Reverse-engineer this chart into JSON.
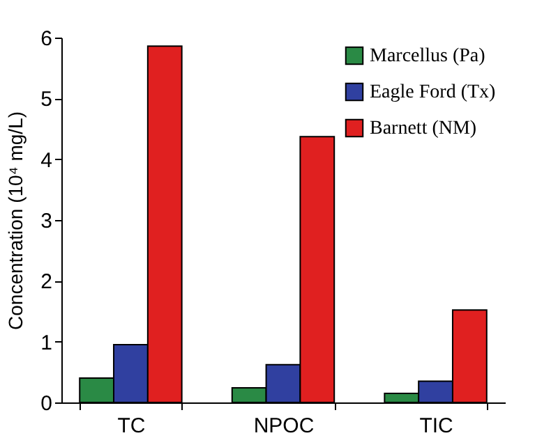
{
  "chart_data": {
    "type": "bar",
    "ylabel": "Concentration (10⁴ mg/L)",
    "categories": [
      "TC",
      "NPOC",
      "TIC"
    ],
    "series": [
      {
        "name": "Marcellus (Pa)",
        "color": "#2a8a45",
        "values": [
          0.4,
          0.24,
          0.15
        ]
      },
      {
        "name": "Eagle Ford (Tx)",
        "color": "#3040a0",
        "values": [
          0.95,
          0.62,
          0.35
        ]
      },
      {
        "name": "Barnett (NM)",
        "color": "#e02020",
        "values": [
          5.86,
          4.37,
          1.52
        ]
      }
    ],
    "ylim": [
      0,
      6
    ],
    "yticks": [
      0,
      1,
      2,
      3,
      4,
      5,
      6
    ],
    "grid": false,
    "legend": "top right"
  }
}
